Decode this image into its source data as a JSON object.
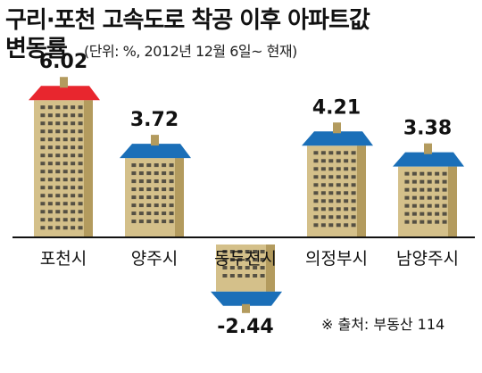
{
  "title": "구리·포천 고속도로 착공 이후 아파트값",
  "title_line2": "변동률",
  "subtitle": "(단위: %, 2012년 12월 6일~ 현재)",
  "source": "※ 출처: 부동산 114",
  "colors": {
    "building_body": "#D4C08A",
    "building_shade": "#B39B5E",
    "window": "#2B2B2B",
    "roof_highlight": "#E8262E",
    "roof_default": "#1B6FB8",
    "axis": "#111111"
  },
  "chart_data": {
    "type": "bar",
    "categories": [
      "포천시",
      "양주시",
      "동두천시",
      "의정부시",
      "남양주시"
    ],
    "values": [
      6.02,
      3.72,
      -2.44,
      4.21,
      3.38
    ],
    "value_labels": [
      "6.02",
      "3.72",
      "-2.44",
      "4.21",
      "3.38"
    ],
    "highlight_index": 0,
    "ylim": [
      -2.44,
      6.02
    ]
  }
}
